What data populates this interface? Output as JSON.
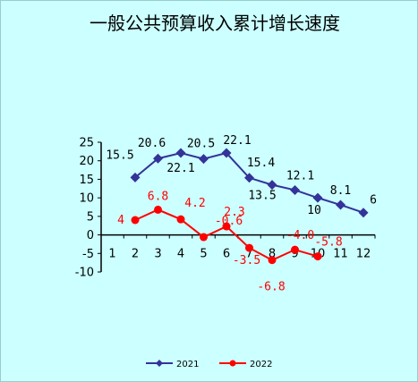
{
  "chart_data": {
    "type": "line",
    "title": "一般公共预算收入累计增长速度",
    "xlabel": "",
    "ylabel": "",
    "categories": [
      "1",
      "2",
      "3",
      "4",
      "5",
      "6",
      "7",
      "8",
      "9",
      "10",
      "11",
      "12"
    ],
    "ylim": [
      -10,
      25
    ],
    "yticks": [
      "25",
      "20",
      "15",
      "10",
      "5",
      "0",
      "-5",
      "-10"
    ],
    "grid": false,
    "legend_position": "bottom",
    "series": [
      {
        "name": "2021",
        "color": "#333399",
        "marker": "diamond",
        "values": [
          null,
          15.5,
          20.6,
          22.1,
          20.5,
          22.1,
          15.4,
          13.5,
          12.1,
          10,
          8.1,
          6
        ],
        "labels": [
          null,
          "15.5",
          "20.6",
          "22.1",
          "20.5",
          "22.1",
          "15.4",
          "13.5",
          "12.1",
          "10",
          "8.1",
          "6"
        ]
      },
      {
        "name": "2022",
        "color": "#ff0000",
        "marker": "circle",
        "values": [
          null,
          4,
          6.8,
          4.2,
          -0.6,
          2.3,
          -3.5,
          -6.8,
          -4.0,
          -5.8,
          null,
          null
        ],
        "labels": [
          null,
          "4",
          "6.8",
          "4.2",
          "-0.6",
          "2.3",
          "-3.5",
          "-6.8",
          "-4.0",
          "-5.8",
          null,
          null
        ]
      }
    ]
  }
}
